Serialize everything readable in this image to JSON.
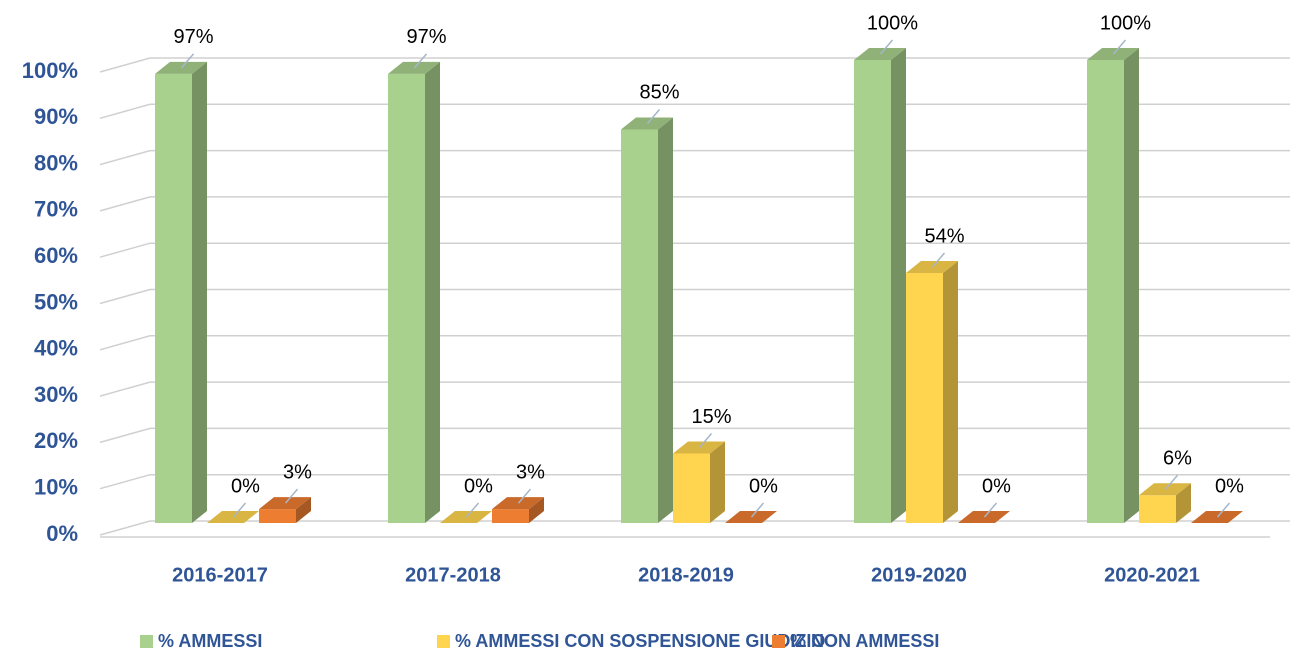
{
  "chart_data": {
    "type": "bar3d",
    "categories": [
      "2016-2017",
      "2017-2018",
      "2018-2019",
      "2019-2020",
      "2020-2021"
    ],
    "series": [
      {
        "name": "% AMMESSI",
        "color": "#a9d18e",
        "values": [
          97,
          97,
          85,
          100,
          100
        ],
        "value_labels": [
          "97%",
          "97%",
          "85%",
          "100%",
          "100%"
        ]
      },
      {
        "name": "% AMMESSI CON SOSPENSIONE GIUDIZIO",
        "color": "#ffd54f",
        "values": [
          0,
          0,
          15,
          54,
          6
        ],
        "value_labels": [
          "0%",
          "0%",
          "15%",
          "54%",
          "6%"
        ]
      },
      {
        "name": "% NON AMMESSI",
        "color": "#ed7d31",
        "values": [
          3,
          3,
          0,
          0,
          0
        ],
        "value_labels": [
          "3%",
          "3%",
          "0%",
          "0%",
          "0%"
        ]
      }
    ],
    "ylim": [
      0,
      100
    ],
    "yticks": [
      {
        "value": 0,
        "label": "0%"
      },
      {
        "value": 10,
        "label": "10%"
      },
      {
        "value": 20,
        "label": "20%"
      },
      {
        "value": 30,
        "label": "30%"
      },
      {
        "value": 40,
        "label": "40%"
      },
      {
        "value": 50,
        "label": "50%"
      },
      {
        "value": 60,
        "label": "60%"
      },
      {
        "value": 70,
        "label": "70%"
      },
      {
        "value": 80,
        "label": "80%"
      },
      {
        "value": 90,
        "label": "90%"
      },
      {
        "value": 100,
        "label": "100%"
      }
    ],
    "grid": true,
    "legend": "bottom"
  }
}
